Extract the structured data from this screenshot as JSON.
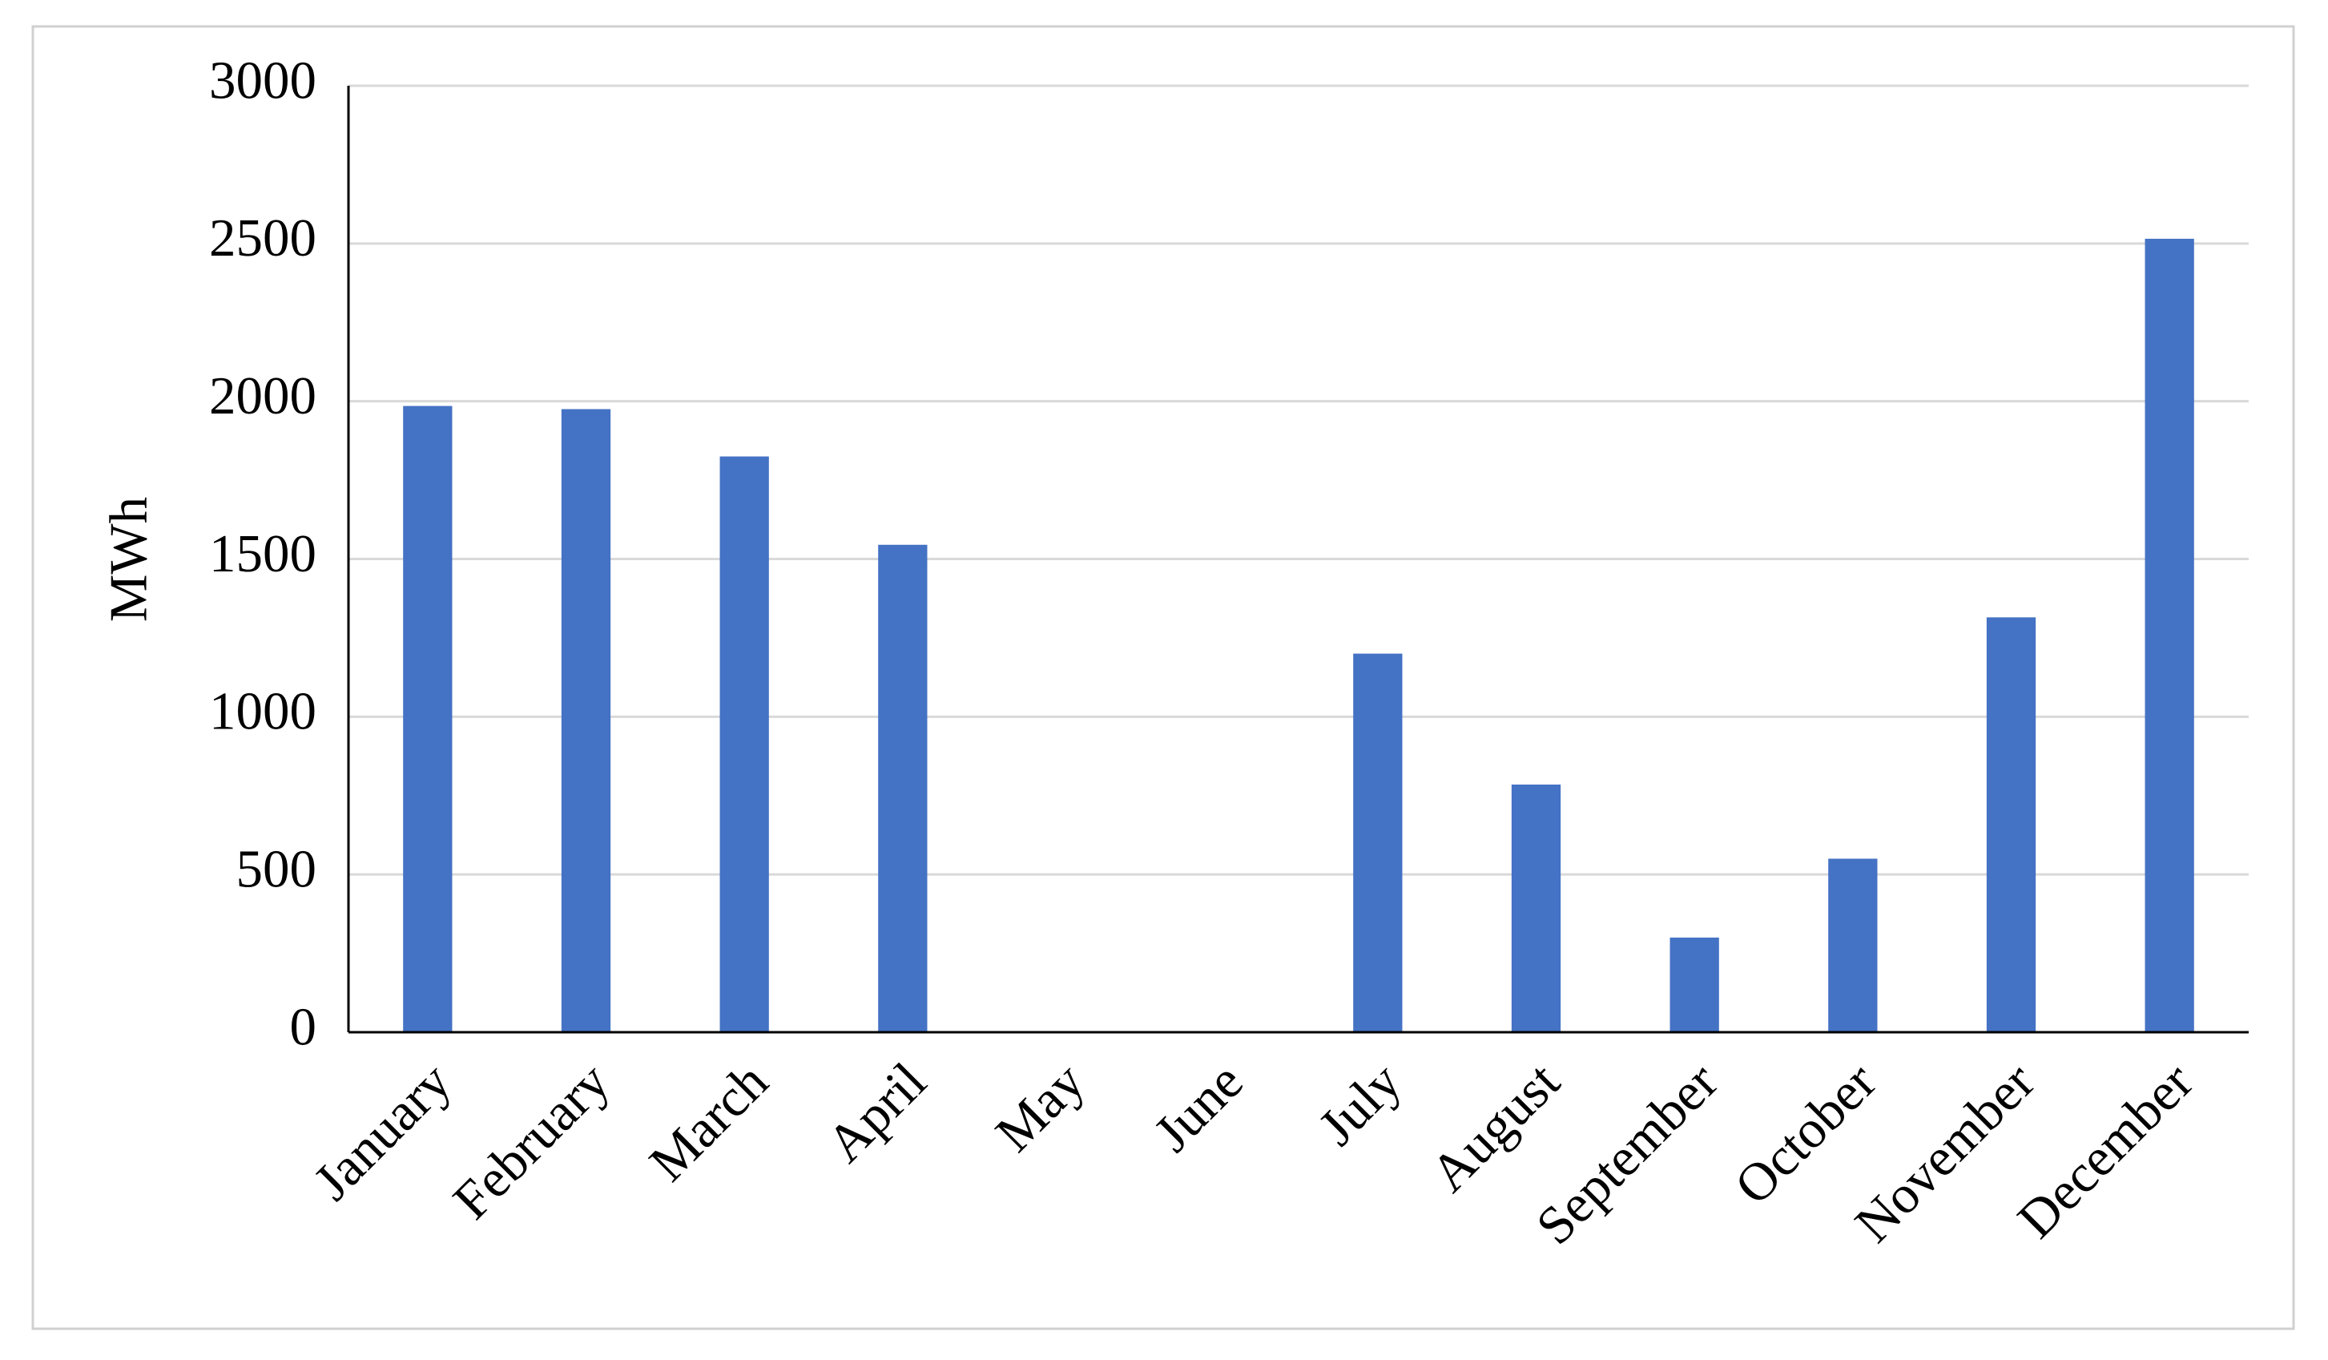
{
  "chart_data": {
    "type": "bar",
    "y_label": "MWh",
    "categories": [
      "January",
      "February",
      "March",
      "April",
      "May",
      "June",
      "July",
      "August",
      "September",
      "October",
      "November",
      "December"
    ],
    "values": [
      1985,
      1975,
      1825,
      1545,
      0,
      0,
      1200,
      785,
      300,
      550,
      1315,
      2515
    ],
    "color": "#4472c4",
    "ylim": [
      0,
      3000
    ],
    "yticks": [
      0,
      500,
      1000,
      1500,
      2000,
      2500,
      3000
    ],
    "grid": true
  }
}
